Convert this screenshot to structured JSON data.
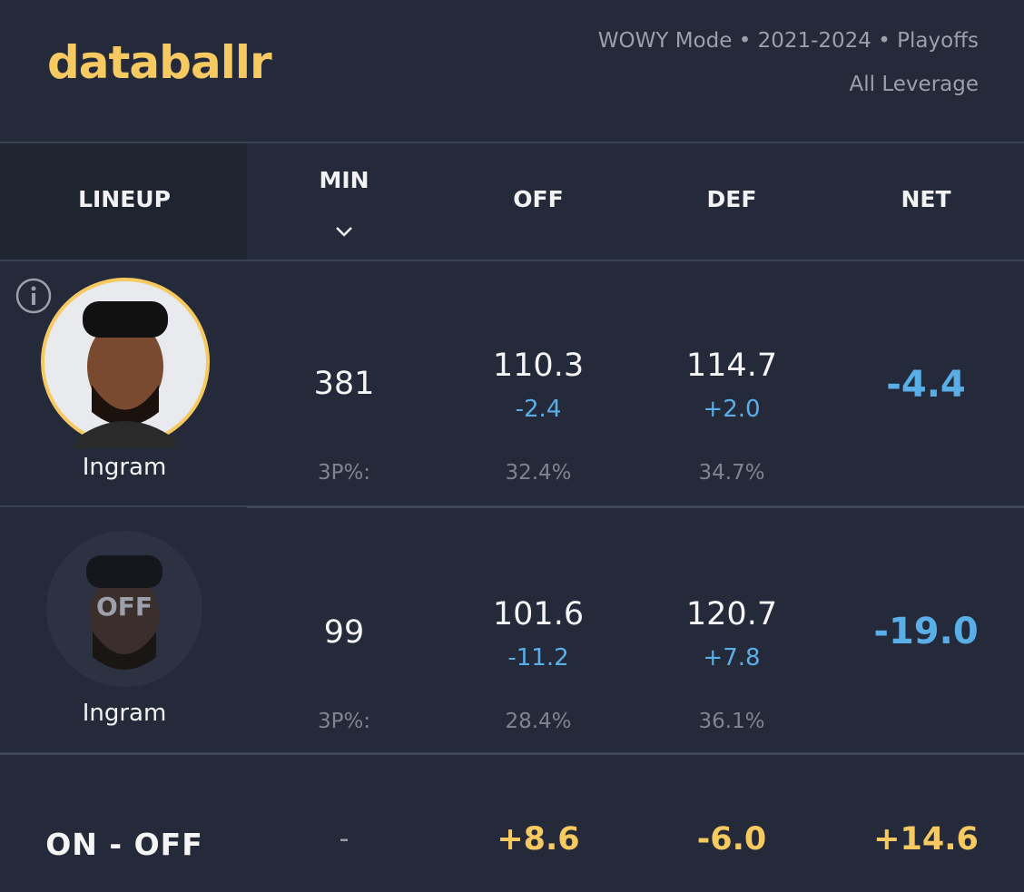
{
  "header": {
    "logo": "databallr",
    "filters": "WOWY Mode • 2021-2024 • Playoffs",
    "leverage": "All Leverage"
  },
  "table": {
    "columns": [
      "LINEUP",
      "MIN",
      "OFF",
      "DEF",
      "NET"
    ],
    "rows": [
      {
        "player": "Ingram",
        "min": "381",
        "off": "110.3",
        "off_diff": "-2.4",
        "def": "114.7",
        "def_diff": "+2.0",
        "net": "-4.4",
        "stat_label": "3P%:",
        "off_3p": "32.4%",
        "def_3p": "34.7%"
      },
      {
        "player": "Ingram",
        "badge": "OFF",
        "min": "99",
        "off": "101.6",
        "off_diff": "-11.2",
        "def": "120.7",
        "def_diff": "+7.8",
        "net": "-19.0",
        "stat_label": "3P%:",
        "off_3p": "28.4%",
        "def_3p": "36.1%"
      }
    ],
    "summary": {
      "label": "ON - OFF",
      "min": "-",
      "off": "+8.6",
      "def": "-6.0",
      "net": "+14.6"
    }
  }
}
